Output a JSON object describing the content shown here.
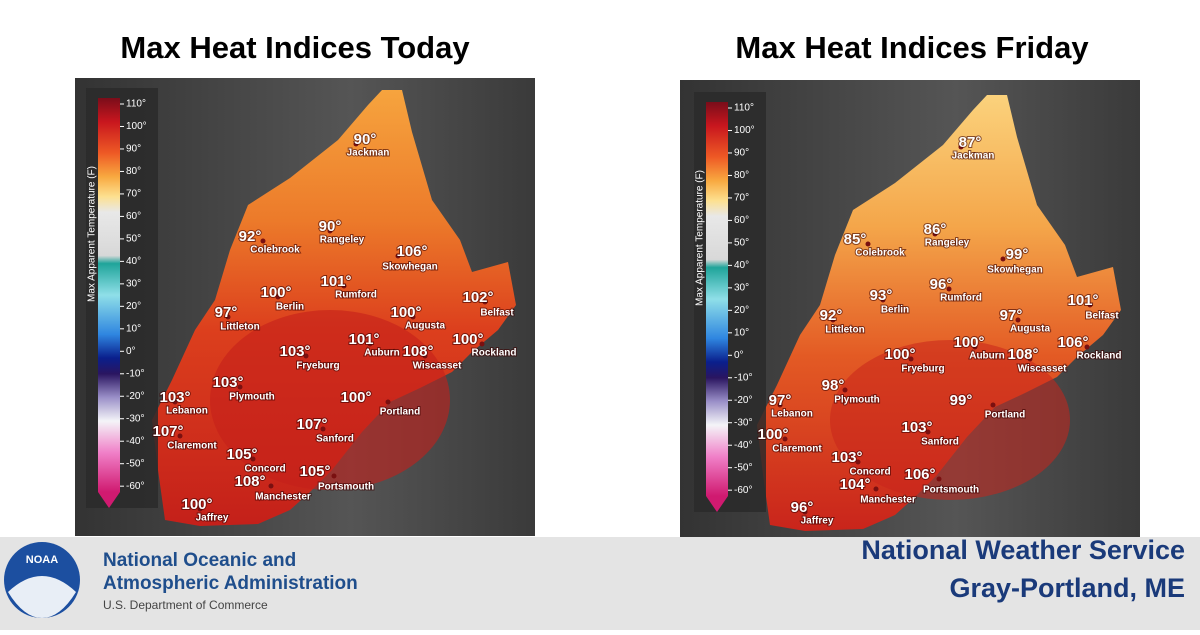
{
  "panels": [
    {
      "title": "Max Heat Indices Today",
      "legend_title": "Max Apparent Temperature (F)",
      "legend_ticks": [
        "110°",
        "100°",
        "90°",
        "80°",
        "70°",
        "60°",
        "50°",
        "40°",
        "30°",
        "20°",
        "10°",
        "0°",
        "-10°",
        "-20°",
        "-30°",
        "-40°",
        "-50°",
        "-60°"
      ],
      "cities": [
        {
          "name": "Jackman",
          "temp": "90°"
        },
        {
          "name": "Colebrook",
          "temp": "92°"
        },
        {
          "name": "Rangeley",
          "temp": "90°"
        },
        {
          "name": "Skowhegan",
          "temp": "106°"
        },
        {
          "name": "Rumford",
          "temp": "101°"
        },
        {
          "name": "Berlin",
          "temp": "100°"
        },
        {
          "name": "Littleton",
          "temp": "97°"
        },
        {
          "name": "Augusta",
          "temp": "100°"
        },
        {
          "name": "Belfast",
          "temp": "102°"
        },
        {
          "name": "Auburn",
          "temp": "101°"
        },
        {
          "name": "Fryeburg",
          "temp": "103°"
        },
        {
          "name": "Wiscasset",
          "temp": "108°"
        },
        {
          "name": "Rockland",
          "temp": "100°"
        },
        {
          "name": "Plymouth",
          "temp": "103°"
        },
        {
          "name": "Lebanon",
          "temp": "103°"
        },
        {
          "name": "Portland",
          "temp": "100°"
        },
        {
          "name": "Claremont",
          "temp": "107°"
        },
        {
          "name": "Sanford",
          "temp": "107°"
        },
        {
          "name": "Concord",
          "temp": "105°"
        },
        {
          "name": "Portsmouth",
          "temp": "105°"
        },
        {
          "name": "Manchester",
          "temp": "108°"
        },
        {
          "name": "Jaffrey",
          "temp": "100°"
        }
      ]
    },
    {
      "title": "Max Heat Indices Friday",
      "legend_title": "Max Apparent Temperature (F)",
      "legend_ticks": [
        "110°",
        "100°",
        "90°",
        "80°",
        "70°",
        "60°",
        "50°",
        "40°",
        "30°",
        "20°",
        "10°",
        "0°",
        "-10°",
        "-20°",
        "-30°",
        "-40°",
        "-50°",
        "-60°"
      ],
      "cities": [
        {
          "name": "Jackman",
          "temp": "87°"
        },
        {
          "name": "Colebrook",
          "temp": "85°"
        },
        {
          "name": "Rangeley",
          "temp": "86°"
        },
        {
          "name": "Skowhegan",
          "temp": "99°"
        },
        {
          "name": "Rumford",
          "temp": "96°"
        },
        {
          "name": "Berlin",
          "temp": "93°"
        },
        {
          "name": "Littleton",
          "temp": "92°"
        },
        {
          "name": "Augusta",
          "temp": "97°"
        },
        {
          "name": "Belfast",
          "temp": "101°"
        },
        {
          "name": "Auburn",
          "temp": "100°"
        },
        {
          "name": "Fryeburg",
          "temp": "100°"
        },
        {
          "name": "Wiscasset",
          "temp": "108°"
        },
        {
          "name": "Rockland",
          "temp": "106°"
        },
        {
          "name": "Plymouth",
          "temp": "98°"
        },
        {
          "name": "Lebanon",
          "temp": "97°"
        },
        {
          "name": "Portland",
          "temp": "99°"
        },
        {
          "name": "Claremont",
          "temp": "100°"
        },
        {
          "name": "Sanford",
          "temp": "103°"
        },
        {
          "name": "Concord",
          "temp": "103°"
        },
        {
          "name": "Portsmouth",
          "temp": "106°"
        },
        {
          "name": "Manchester",
          "temp": "104°"
        },
        {
          "name": "Jaffrey",
          "temp": "96°"
        }
      ]
    }
  ],
  "footer": {
    "logo": "NOAA",
    "org_line1": "National Oceanic and",
    "org_line2": "Atmospheric Administration",
    "department": "U.S. Department of Commerce",
    "service": "National Weather Service",
    "office": "Gray-Portland, ME"
  }
}
